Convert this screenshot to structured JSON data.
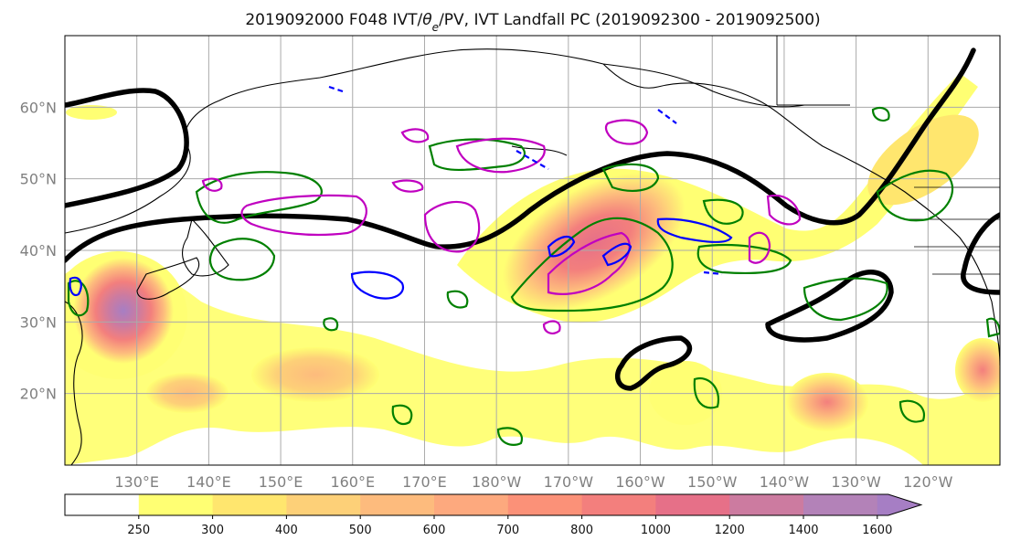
{
  "title": "2019092000 F048 IVT/",
  "title_theta": "θ",
  "title_sub": "e",
  "title_rest": "/PV, IVT Landfall PC (2019092300 - 2019092500)",
  "map": {
    "lon_range": [
      120,
      250
    ],
    "lat_range": [
      10,
      70
    ],
    "gridlines": true
  },
  "lat_ticks": [
    {
      "value": 20,
      "label": "20°N"
    },
    {
      "value": 30,
      "label": "30°N"
    },
    {
      "value": 40,
      "label": "40°N"
    },
    {
      "value": 50,
      "label": "50°N"
    },
    {
      "value": 60,
      "label": "60°N"
    }
  ],
  "lon_ticks": [
    {
      "value": 130,
      "label": "130°E"
    },
    {
      "value": 140,
      "label": "140°E"
    },
    {
      "value": 150,
      "label": "150°E"
    },
    {
      "value": 160,
      "label": "160°E"
    },
    {
      "value": 170,
      "label": "170°E"
    },
    {
      "value": 180,
      "label": "180°W"
    },
    {
      "value": 190,
      "label": "170°W"
    },
    {
      "value": 200,
      "label": "160°W"
    },
    {
      "value": 210,
      "label": "150°W"
    },
    {
      "value": 220,
      "label": "140°W"
    },
    {
      "value": 230,
      "label": "130°W"
    },
    {
      "value": 240,
      "label": "120°W"
    }
  ],
  "colorbar": {
    "levels": [
      250,
      300,
      400,
      500,
      600,
      700,
      800,
      1000,
      1200,
      1400,
      1600
    ],
    "colors": [
      "#ffffff",
      "#ffff73",
      "#ffe66e",
      "#fdd078",
      "#fdbb7d",
      "#fda97e",
      "#fb9178",
      "#f37f7d",
      "#e67088",
      "#cc7ba0",
      "#b382b8",
      "#a67ec4"
    ],
    "extend": "max"
  },
  "colors": {
    "pc_contour": "#000000",
    "theta_e": "#008000",
    "pv": "#c000c0",
    "ivt_neg": "#0000ff"
  }
}
